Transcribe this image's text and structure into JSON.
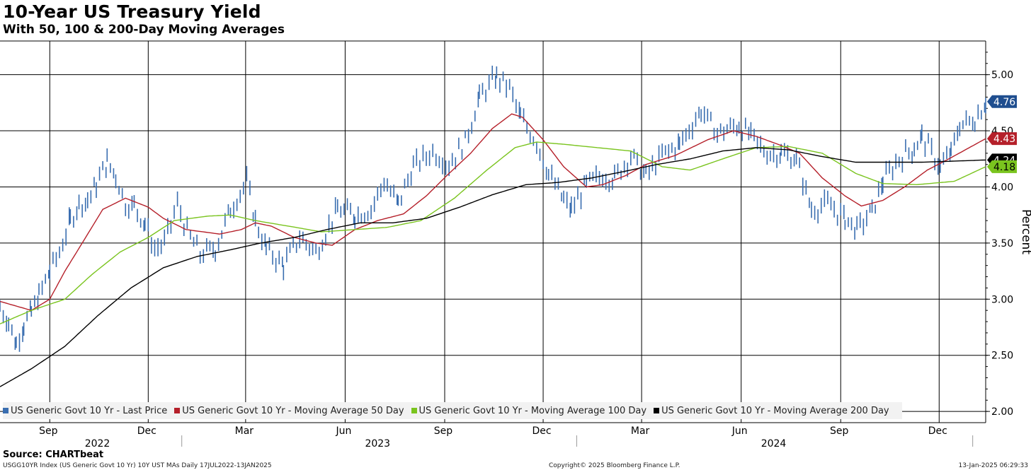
{
  "title": "10-Year US Treasury Yield",
  "subtitle": "With 50, 100 & 200-Day Moving Averages",
  "footer": {
    "source": "Source: CHARTbeat",
    "index_info": "USGG10YR Index (US Generic Govt 10 Yr) 10Y UST MAs  Daily 17JUL2022-13JAN2025",
    "copyright": "Copyright© 2025 Bloomberg Finance L.P.",
    "timestamp": "13-Jan-2025 06:29:33"
  },
  "chart_data": {
    "type": "line",
    "title": "10-Year US Treasury Yield",
    "subtitle": "With 50, 100 & 200-Day Moving Averages",
    "ylabel": "Percent",
    "ylim": [
      1.9,
      5.3
    ],
    "yticks": [
      "2.00",
      "2.50",
      "3.00",
      "3.50",
      "4.00",
      "4.50",
      "5.00"
    ],
    "xlim": [
      "2022-07-17",
      "2025-01-13"
    ],
    "month_ticks": [
      {
        "label": "Sep",
        "date": "2022-09-01"
      },
      {
        "label": "Dec",
        "date": "2022-12-01"
      },
      {
        "label": "Mar",
        "date": "2023-03-01"
      },
      {
        "label": "Jun",
        "date": "2023-06-01"
      },
      {
        "label": "Sep",
        "date": "2023-09-01"
      },
      {
        "label": "Dec",
        "date": "2023-12-01"
      },
      {
        "label": "Mar",
        "date": "2024-03-01"
      },
      {
        "label": "Jun",
        "date": "2024-06-01"
      },
      {
        "label": "Sep",
        "date": "2024-09-01"
      },
      {
        "label": "Dec",
        "date": "2024-12-01"
      }
    ],
    "year_labels": [
      {
        "label": "2022",
        "date": "2022-10-15"
      },
      {
        "label": "2023",
        "date": "2023-07-01"
      },
      {
        "label": "2024",
        "date": "2024-07-01"
      }
    ],
    "year_dividers": [
      "2023-01-01",
      "2024-01-01",
      "2025-01-01"
    ],
    "grid": true,
    "legend_position": "bottom-left",
    "series": [
      {
        "name": "US Generic Govt 10 Yr - Last Price",
        "color": "#3a6eb0",
        "style": "bars",
        "last_value": "4.76",
        "points": [
          [
            "2022-07-17",
            2.93
          ],
          [
            "2022-07-25",
            2.8
          ],
          [
            "2022-08-01",
            2.6
          ],
          [
            "2022-08-08",
            2.78
          ],
          [
            "2022-08-15",
            2.88
          ],
          [
            "2022-08-22",
            3.03
          ],
          [
            "2022-09-01",
            3.25
          ],
          [
            "2022-09-10",
            3.42
          ],
          [
            "2022-09-20",
            3.7
          ],
          [
            "2022-09-28",
            3.85
          ],
          [
            "2022-10-06",
            3.88
          ],
          [
            "2022-10-14",
            4.02
          ],
          [
            "2022-10-24",
            4.22
          ],
          [
            "2022-11-01",
            4.1
          ],
          [
            "2022-11-10",
            3.85
          ],
          [
            "2022-11-18",
            3.83
          ],
          [
            "2022-11-28",
            3.68
          ],
          [
            "2022-12-07",
            3.45
          ],
          [
            "2022-12-16",
            3.5
          ],
          [
            "2022-12-28",
            3.85
          ],
          [
            "2023-01-06",
            3.6
          ],
          [
            "2023-01-18",
            3.4
          ],
          [
            "2023-02-01",
            3.45
          ],
          [
            "2023-02-15",
            3.8
          ],
          [
            "2023-03-02",
            4.05
          ],
          [
            "2023-03-10",
            3.7
          ],
          [
            "2023-03-20",
            3.45
          ],
          [
            "2023-04-05",
            3.3
          ],
          [
            "2023-04-20",
            3.55
          ],
          [
            "2023-05-05",
            3.42
          ],
          [
            "2023-05-25",
            3.8
          ],
          [
            "2023-06-10",
            3.75
          ],
          [
            "2023-06-25",
            3.8
          ],
          [
            "2023-07-07",
            4.05
          ],
          [
            "2023-07-20",
            3.85
          ],
          [
            "2023-08-03",
            4.18
          ],
          [
            "2023-08-21",
            4.32
          ],
          [
            "2023-09-05",
            4.2
          ],
          [
            "2023-09-20",
            4.4
          ],
          [
            "2023-10-03",
            4.8
          ],
          [
            "2023-10-19",
            4.98
          ],
          [
            "2023-10-31",
            4.88
          ],
          [
            "2023-11-10",
            4.62
          ],
          [
            "2023-11-25",
            4.4
          ],
          [
            "2023-12-06",
            4.12
          ],
          [
            "2023-12-20",
            3.88
          ],
          [
            "2023-12-27",
            3.8
          ],
          [
            "2024-01-10",
            4.02
          ],
          [
            "2024-01-25",
            4.1
          ],
          [
            "2024-02-05",
            4.08
          ],
          [
            "2024-02-20",
            4.28
          ],
          [
            "2024-03-05",
            4.1
          ],
          [
            "2024-03-20",
            4.28
          ],
          [
            "2024-04-05",
            4.38
          ],
          [
            "2024-04-25",
            4.68
          ],
          [
            "2024-05-10",
            4.48
          ],
          [
            "2024-05-30",
            4.55
          ],
          [
            "2024-06-10",
            4.45
          ],
          [
            "2024-06-25",
            4.3
          ],
          [
            "2024-07-08",
            4.3
          ],
          [
            "2024-07-22",
            4.25
          ],
          [
            "2024-08-05",
            3.8
          ],
          [
            "2024-08-20",
            3.85
          ],
          [
            "2024-09-05",
            3.72
          ],
          [
            "2024-09-16",
            3.62
          ],
          [
            "2024-09-30",
            3.78
          ],
          [
            "2024-10-10",
            4.05
          ],
          [
            "2024-10-25",
            4.25
          ],
          [
            "2024-11-08",
            4.35
          ],
          [
            "2024-11-15",
            4.45
          ],
          [
            "2024-12-02",
            4.18
          ],
          [
            "2024-12-12",
            4.3
          ],
          [
            "2024-12-20",
            4.55
          ],
          [
            "2025-01-03",
            4.6
          ],
          [
            "2025-01-13",
            4.76
          ]
        ]
      },
      {
        "name": "US Generic Govt 10 Yr - Moving Average 50 Day",
        "color": "#b5202a",
        "style": "line",
        "last_value": "4.43",
        "points": [
          [
            "2022-07-17",
            2.98
          ],
          [
            "2022-08-15",
            2.9
          ],
          [
            "2022-09-01",
            3.0
          ],
          [
            "2022-09-15",
            3.25
          ],
          [
            "2022-10-01",
            3.5
          ],
          [
            "2022-10-20",
            3.8
          ],
          [
            "2022-11-10",
            3.9
          ],
          [
            "2022-12-01",
            3.82
          ],
          [
            "2022-12-15",
            3.72
          ],
          [
            "2023-01-05",
            3.62
          ],
          [
            "2023-02-05",
            3.58
          ],
          [
            "2023-02-25",
            3.62
          ],
          [
            "2023-03-10",
            3.68
          ],
          [
            "2023-03-25",
            3.65
          ],
          [
            "2023-04-15",
            3.55
          ],
          [
            "2023-05-05",
            3.5
          ],
          [
            "2023-05-20",
            3.48
          ],
          [
            "2023-06-10",
            3.62
          ],
          [
            "2023-07-01",
            3.7
          ],
          [
            "2023-07-25",
            3.76
          ],
          [
            "2023-08-15",
            3.92
          ],
          [
            "2023-09-05",
            4.12
          ],
          [
            "2023-09-25",
            4.3
          ],
          [
            "2023-10-15",
            4.52
          ],
          [
            "2023-11-02",
            4.65
          ],
          [
            "2023-11-12",
            4.62
          ],
          [
            "2023-12-01",
            4.42
          ],
          [
            "2023-12-20",
            4.18
          ],
          [
            "2024-01-10",
            4.0
          ],
          [
            "2024-01-25",
            4.02
          ],
          [
            "2024-02-15",
            4.1
          ],
          [
            "2024-03-05",
            4.2
          ],
          [
            "2024-04-01",
            4.28
          ],
          [
            "2024-05-01",
            4.42
          ],
          [
            "2024-05-25",
            4.5
          ],
          [
            "2024-06-15",
            4.45
          ],
          [
            "2024-07-05",
            4.38
          ],
          [
            "2024-07-25",
            4.3
          ],
          [
            "2024-08-15",
            4.08
          ],
          [
            "2024-09-05",
            3.92
          ],
          [
            "2024-09-20",
            3.83
          ],
          [
            "2024-10-10",
            3.88
          ],
          [
            "2024-10-30",
            4.0
          ],
          [
            "2024-11-20",
            4.15
          ],
          [
            "2024-12-10",
            4.25
          ],
          [
            "2025-01-13",
            4.43
          ]
        ]
      },
      {
        "name": "US Generic Govt 10 Yr - Moving Average 100 Day",
        "color": "#7ac41e",
        "style": "line",
        "last_value": "4.18",
        "points": [
          [
            "2022-07-17",
            2.78
          ],
          [
            "2022-08-15",
            2.9
          ],
          [
            "2022-09-15",
            3.0
          ],
          [
            "2022-10-10",
            3.22
          ],
          [
            "2022-11-05",
            3.42
          ],
          [
            "2022-12-01",
            3.55
          ],
          [
            "2022-12-25",
            3.7
          ],
          [
            "2023-01-25",
            3.74
          ],
          [
            "2023-02-15",
            3.75
          ],
          [
            "2023-03-10",
            3.7
          ],
          [
            "2023-04-10",
            3.65
          ],
          [
            "2023-05-10",
            3.6
          ],
          [
            "2023-06-10",
            3.62
          ],
          [
            "2023-07-10",
            3.64
          ],
          [
            "2023-08-10",
            3.7
          ],
          [
            "2023-09-10",
            3.9
          ],
          [
            "2023-10-10",
            4.15
          ],
          [
            "2023-11-05",
            4.35
          ],
          [
            "2023-11-25",
            4.4
          ],
          [
            "2023-12-20",
            4.38
          ],
          [
            "2024-01-20",
            4.35
          ],
          [
            "2024-02-20",
            4.32
          ],
          [
            "2024-03-20",
            4.18
          ],
          [
            "2024-04-15",
            4.15
          ],
          [
            "2024-05-15",
            4.25
          ],
          [
            "2024-06-15",
            4.35
          ],
          [
            "2024-07-15",
            4.36
          ],
          [
            "2024-08-15",
            4.3
          ],
          [
            "2024-09-15",
            4.12
          ],
          [
            "2024-10-10",
            4.03
          ],
          [
            "2024-11-10",
            4.02
          ],
          [
            "2024-12-15",
            4.05
          ],
          [
            "2025-01-13",
            4.18
          ]
        ]
      },
      {
        "name": "US Generic Govt 10 Yr - Moving Average 200 Day",
        "color": "#000000",
        "style": "line",
        "last_value": "4.24",
        "points": [
          [
            "2022-07-17",
            2.22
          ],
          [
            "2022-08-15",
            2.38
          ],
          [
            "2022-09-15",
            2.58
          ],
          [
            "2022-10-15",
            2.85
          ],
          [
            "2022-11-15",
            3.1
          ],
          [
            "2022-12-15",
            3.28
          ],
          [
            "2023-01-15",
            3.38
          ],
          [
            "2023-02-15",
            3.44
          ],
          [
            "2023-03-15",
            3.5
          ],
          [
            "2023-04-15",
            3.55
          ],
          [
            "2023-05-15",
            3.62
          ],
          [
            "2023-06-15",
            3.68
          ],
          [
            "2023-07-15",
            3.68
          ],
          [
            "2023-08-15",
            3.72
          ],
          [
            "2023-09-15",
            3.82
          ],
          [
            "2023-10-15",
            3.93
          ],
          [
            "2023-11-15",
            4.02
          ],
          [
            "2023-12-15",
            4.04
          ],
          [
            "2024-01-15",
            4.08
          ],
          [
            "2024-02-15",
            4.14
          ],
          [
            "2024-03-15",
            4.2
          ],
          [
            "2024-04-15",
            4.25
          ],
          [
            "2024-05-15",
            4.32
          ],
          [
            "2024-06-15",
            4.35
          ],
          [
            "2024-07-15",
            4.33
          ],
          [
            "2024-08-15",
            4.27
          ],
          [
            "2024-09-15",
            4.22
          ],
          [
            "2024-10-15",
            4.22
          ],
          [
            "2024-11-15",
            4.22
          ],
          [
            "2024-12-15",
            4.23
          ],
          [
            "2025-01-13",
            4.24
          ]
        ]
      }
    ]
  }
}
